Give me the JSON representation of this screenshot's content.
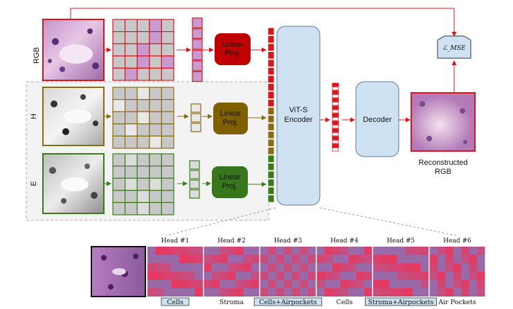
{
  "diagram": {
    "rows": {
      "rgb_label": "RGB",
      "h_label": "H",
      "e_label": "E"
    },
    "linear_proj": {
      "rgb": "Linear\nProj.",
      "h": "Linear\nProj.",
      "e": "Linear\nProj."
    },
    "encoder": "ViT-S\nEncoder",
    "decoder": "Decoder",
    "loss": "ℒ_MSE",
    "reconstructed": "Reconstructed\nRGB",
    "heads": [
      "Head #1",
      "Head #2",
      "Head #3",
      "Head #4",
      "Head #5",
      "Head #6"
    ],
    "head_tags": [
      "Cells",
      "Stroma",
      "Cells+Airpockets",
      "Cells",
      "Stroma+Airpockets",
      "Air Pockets"
    ],
    "colors": {
      "rgb": "#d9141c",
      "h": "#8a6a12",
      "e": "#3a7a1a",
      "blue_box": "#cfe2f3",
      "proj_rgb": "#c00000",
      "proj_h": "#7f6000",
      "proj_e": "#38761d"
    }
  }
}
